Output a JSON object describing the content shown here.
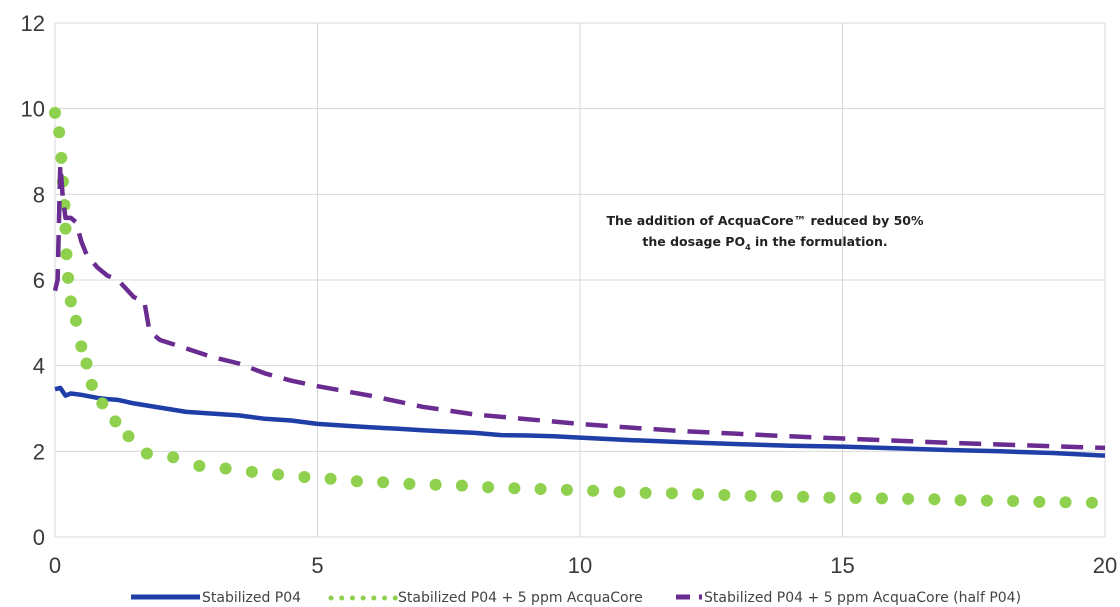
{
  "chart_data": {
    "type": "line",
    "title": "",
    "xlabel": "",
    "ylabel": "",
    "xlim": [
      0,
      20
    ],
    "ylim": [
      0,
      12
    ],
    "x_ticks": [
      "0",
      "5",
      "10",
      "15",
      "20"
    ],
    "y_ticks": [
      "0",
      "2",
      "4",
      "6",
      "8",
      "10",
      "12"
    ],
    "grid": true,
    "legend_position": "bottom",
    "annotation": {
      "line1": "The addition of AcquaCore™ reduced by 50%",
      "line2_before": "the dosage PO",
      "line2_sub": "4",
      "line2_after": " in the formulation."
    },
    "series": [
      {
        "name": "Stabilized P04",
        "color": "#1f3ea8",
        "style": "solid",
        "x": [
          0,
          0.1,
          0.2,
          0.3,
          0.5,
          0.8,
          1.0,
          1.2,
          1.5,
          2.0,
          2.5,
          3.0,
          3.5,
          4.0,
          4.5,
          5.0,
          5.5,
          6.0,
          6.5,
          7.0,
          7.5,
          8.0,
          8.5,
          9.0,
          9.5,
          10.0,
          11.0,
          12.0,
          13.0,
          14.0,
          15.0,
          16.0,
          17.0,
          18.0,
          19.0,
          20.0
        ],
        "y": [
          3.45,
          3.48,
          3.3,
          3.35,
          3.32,
          3.25,
          3.22,
          3.2,
          3.12,
          3.02,
          2.92,
          2.88,
          2.84,
          2.76,
          2.72,
          2.64,
          2.6,
          2.56,
          2.53,
          2.49,
          2.46,
          2.43,
          2.38,
          2.37,
          2.35,
          2.32,
          2.26,
          2.21,
          2.17,
          2.13,
          2.11,
          2.07,
          2.03,
          2.0,
          1.96,
          1.9
        ]
      },
      {
        "name": "Stabilized P04 + 5 ppm AcquaCore",
        "color": "#8fd14f",
        "style": "dotted",
        "x": [
          0,
          0.08,
          0.12,
          0.15,
          0.18,
          0.2,
          0.22,
          0.25,
          0.3,
          0.4,
          0.5,
          0.6,
          0.7,
          0.9,
          1.15,
          1.4,
          1.75,
          2.25,
          2.75,
          3.25,
          3.75,
          4.25,
          4.75,
          5.25,
          5.75,
          6.25,
          6.75,
          7.25,
          7.75,
          8.25,
          8.75,
          9.25,
          9.75,
          10.25,
          10.75,
          11.25,
          11.75,
          12.25,
          12.75,
          13.25,
          13.75,
          14.25,
          14.75,
          15.25,
          15.75,
          16.25,
          16.75,
          17.25,
          17.75,
          18.25,
          18.75,
          19.25,
          19.75
        ],
        "y": [
          9.9,
          9.45,
          8.85,
          8.3,
          7.75,
          7.2,
          6.6,
          6.05,
          5.5,
          5.05,
          4.45,
          4.05,
          3.55,
          3.12,
          2.7,
          2.35,
          1.95,
          1.86,
          1.66,
          1.6,
          1.52,
          1.46,
          1.4,
          1.36,
          1.3,
          1.28,
          1.24,
          1.22,
          1.2,
          1.16,
          1.14,
          1.12,
          1.1,
          1.08,
          1.05,
          1.03,
          1.02,
          1.0,
          0.98,
          0.96,
          0.95,
          0.94,
          0.92,
          0.91,
          0.9,
          0.89,
          0.88,
          0.86,
          0.85,
          0.84,
          0.82,
          0.81,
          0.8
        ]
      },
      {
        "name": "Stabilized P04 + 5 ppm AcquaCore (half P04)",
        "color": "#6a2c91",
        "style": "dashed",
        "x": [
          0,
          0.05,
          0.1,
          0.15,
          0.2,
          0.3,
          0.4,
          0.5,
          0.6,
          0.8,
          1.0,
          1.2,
          1.5,
          1.7,
          1.8,
          2.0,
          2.5,
          3.0,
          3.5,
          4.0,
          4.5,
          5.0,
          6.0,
          7.0,
          8.0,
          9.0,
          10.0,
          11.0,
          12.0,
          13.0,
          14.0,
          15.0,
          16.0,
          17.0,
          18.0,
          19.0,
          20.0
        ],
        "y": [
          5.75,
          6.0,
          8.7,
          7.9,
          7.45,
          7.45,
          7.35,
          6.9,
          6.6,
          6.3,
          6.1,
          6.0,
          5.6,
          5.5,
          4.8,
          4.6,
          4.4,
          4.2,
          4.05,
          3.82,
          3.65,
          3.52,
          3.3,
          3.04,
          2.86,
          2.75,
          2.64,
          2.55,
          2.47,
          2.41,
          2.35,
          2.3,
          2.25,
          2.2,
          2.16,
          2.12,
          2.08
        ]
      }
    ]
  }
}
